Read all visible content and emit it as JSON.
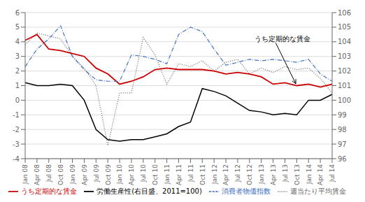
{
  "chart_data": {
    "type": "line",
    "categories": [
      "Jan 08",
      "Apr 08",
      "Jul 08",
      "Oct 08",
      "Jan 09",
      "Apr 09",
      "Jul 09",
      "Oct 09",
      "Jan 10",
      "Apr 10",
      "Jul 10",
      "Oct 10",
      "Jan 11",
      "Apr 11",
      "Jul 11",
      "Oct 11",
      "Jan 12",
      "Apr 12",
      "Jul 12",
      "Oct 12",
      "Jan 13",
      "Apr 13",
      "Jul 13",
      "Oct 13",
      "Jan 14",
      "Apr 14",
      "Jul 14"
    ],
    "series": [
      {
        "name": "週当たり平均賃金",
        "color": "#666666",
        "line_style": "dotted",
        "values": [
          3.8,
          4.6,
          4.4,
          4.2,
          3.0,
          2.2,
          1.0,
          -3.1,
          0.5,
          0.5,
          4.3,
          3.1,
          1.1,
          2.5,
          2.3,
          2.7,
          2.0,
          2.6,
          2.8,
          1.8,
          2.2,
          1.9,
          2.3,
          2.1,
          2.2,
          1.5,
          0.5
        ]
      },
      {
        "name": "うち定期的な賃金",
        "color": "#cc0000",
        "line_style": "solid",
        "values": [
          4.1,
          4.5,
          3.5,
          3.4,
          3.2,
          3.0,
          2.2,
          1.8,
          1.1,
          1.3,
          1.6,
          2.1,
          2.2,
          2.1,
          2.1,
          2.1,
          2.0,
          1.8,
          1.9,
          1.8,
          1.6,
          1.1,
          1.2,
          1.0,
          1.1,
          0.9,
          1.1
        ]
      },
      {
        "name": "消費者物価指数",
        "color": "#4472c4",
        "line_style": "dashdot",
        "values": [
          2.3,
          3.5,
          4.2,
          5.1,
          3.0,
          2.1,
          1.4,
          1.3,
          1.3,
          3.1,
          3.0,
          2.8,
          2.5,
          4.5,
          5.0,
          4.7,
          3.5,
          2.4,
          2.6,
          2.8,
          2.7,
          2.8,
          2.7,
          2.6,
          2.8,
          1.8,
          1.3
        ]
      },
      {
        "name": "労働生産性(右目盛、2011=100)",
        "color": "#000000",
        "line_style": "solid",
        "axis": "y2",
        "values": [
          101.2,
          101.0,
          101.0,
          101.1,
          101.0,
          100.0,
          98.0,
          97.3,
          97.2,
          97.3,
          97.3,
          97.5,
          97.7,
          98.2,
          98.5,
          100.8,
          100.6,
          100.3,
          99.8,
          99.3,
          99.2,
          99.0,
          99.1,
          99.0,
          100.0,
          100.0,
          100.4
        ]
      }
    ],
    "ylim": [
      -4,
      6
    ],
    "yticks": [
      -4,
      -3,
      -2,
      -1,
      0,
      1,
      2,
      3,
      4,
      5,
      6
    ],
    "y2lim": [
      96,
      106
    ],
    "y2ticks": [
      96,
      97,
      98,
      99,
      100,
      101,
      102,
      103,
      104,
      105,
      106
    ],
    "grid": true,
    "legend": "bottom",
    "annotations": [
      {
        "text": "うち定期的な賃金",
        "x": "Oct 13"
      }
    ]
  }
}
